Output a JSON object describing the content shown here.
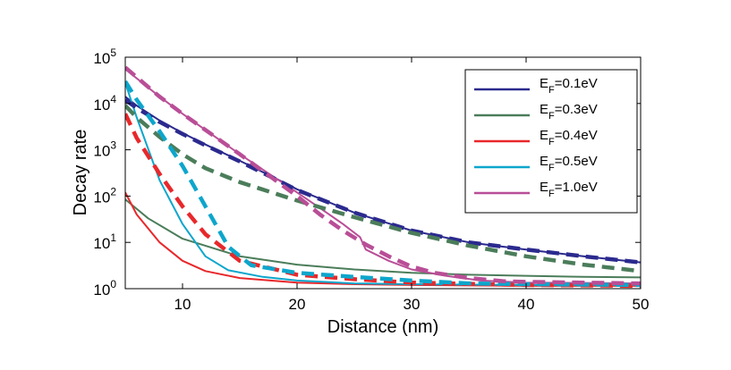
{
  "chart_data": {
    "type": "line",
    "title": "",
    "xlabel": "Distance (nm)",
    "ylabel": "Decay rate",
    "xlim": [
      5,
      50
    ],
    "ylim": [
      1,
      100000
    ],
    "yscale": "log",
    "grid": false,
    "legend_position": "top-right",
    "x_ticks": [
      10,
      20,
      30,
      40,
      50
    ],
    "y_tick_exponents": [
      0,
      1,
      2,
      3,
      4,
      5
    ],
    "y_tick_base": "10",
    "legend_prefix": "E",
    "legend_subscript": "F",
    "series": [
      {
        "name": "E_F=0.1eV",
        "legend_value": "=0.1eV",
        "color": "#2b2a8e",
        "solid": {
          "x": [
            5,
            6,
            8,
            10,
            12,
            15,
            18,
            20,
            25,
            30,
            35,
            40,
            45,
            50
          ],
          "y": [
            14000,
            9000,
            4300,
            2300,
            1300,
            580,
            250,
            140,
            44,
            18,
            10,
            7,
            5,
            3.7
          ]
        },
        "dashed": {
          "x": [
            5,
            6,
            8,
            10,
            12,
            15,
            18,
            20,
            25,
            30,
            35,
            40,
            45,
            50
          ],
          "y": [
            12000,
            8000,
            4000,
            2200,
            1250,
            560,
            240,
            135,
            44,
            18,
            10,
            7,
            5,
            3.7
          ]
        }
      },
      {
        "name": "E_F=0.3eV",
        "legend_value": "=0.3eV",
        "color": "#4b7d5a",
        "solid": {
          "x": [
            5,
            7,
            10,
            15,
            20,
            25,
            30,
            35,
            40,
            45,
            50
          ],
          "y": [
            85,
            33,
            12,
            5,
            3.3,
            2.6,
            2.2,
            2.0,
            1.9,
            1.8,
            1.75
          ]
        },
        "dashed": {
          "x": [
            5,
            6,
            8,
            10,
            12,
            15,
            20,
            25,
            30,
            35,
            40,
            45,
            50
          ],
          "y": [
            9000,
            5000,
            1900,
            800,
            400,
            200,
            80,
            35,
            16,
            8.5,
            5,
            3.3,
            2.4
          ]
        }
      },
      {
        "name": "E_F=0.4eV",
        "legend_value": "=0.4eV",
        "color": "#e8282b",
        "solid": {
          "x": [
            5,
            6,
            8,
            10,
            12,
            15,
            20,
            25,
            30,
            40,
            50
          ],
          "y": [
            120,
            40,
            10,
            4,
            2.4,
            1.7,
            1.35,
            1.25,
            1.2,
            1.15,
            1.15
          ]
        },
        "dashed": {
          "x": [
            5,
            6,
            8,
            10,
            12,
            15,
            20,
            25,
            30,
            40,
            50
          ],
          "y": [
            6000,
            1800,
            300,
            60,
            15,
            4,
            2,
            1.6,
            1.35,
            1.2,
            1.15
          ]
        }
      },
      {
        "name": "E_F=0.5eV",
        "legend_value": "=0.5eV",
        "color": "#0da6cc",
        "solid": {
          "x": [
            5,
            6,
            8,
            10,
            12,
            14,
            17,
            20,
            25,
            30,
            40,
            50
          ],
          "y": [
            28000,
            5000,
            220,
            25,
            5,
            2.5,
            1.8,
            1.5,
            1.3,
            1.25,
            1.2,
            1.2
          ]
        },
        "dashed": {
          "x": [
            5,
            6,
            8,
            10,
            12,
            14,
            16,
            20,
            25,
            30,
            35,
            40,
            50
          ],
          "y": [
            30000,
            12000,
            2500,
            450,
            60,
            8,
            3.2,
            2.2,
            1.8,
            1.5,
            1.3,
            1.25,
            1.2
          ]
        }
      },
      {
        "name": "E_F=1.0eV",
        "legend_value": "=1.0eV",
        "color": "#b94e97",
        "solid": {
          "x": [
            5,
            8,
            10,
            15,
            20,
            22,
            24,
            25.5,
            26,
            28,
            30,
            33,
            36,
            40,
            50
          ],
          "y": [
            55000,
            14000,
            6000,
            800,
            120,
            55,
            25,
            13,
            7,
            4,
            2.6,
            1.9,
            1.5,
            1.35,
            1.3
          ]
        },
        "dashed": {
          "x": [
            5,
            8,
            10,
            15,
            20,
            22,
            24,
            26,
            28,
            30,
            32,
            35,
            38,
            40,
            45,
            50
          ],
          "y": [
            60000,
            14000,
            6000,
            800,
            100,
            40,
            18,
            9,
            5,
            3,
            2.2,
            1.7,
            1.45,
            1.4,
            1.35,
            1.3
          ]
        }
      }
    ]
  }
}
